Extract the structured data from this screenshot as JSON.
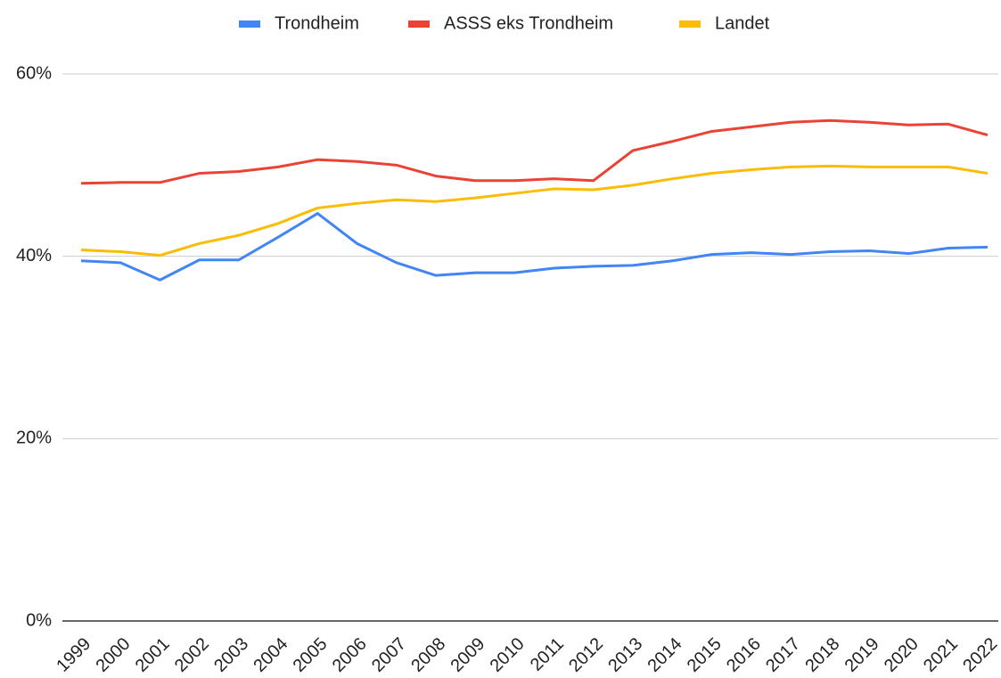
{
  "chart_data": {
    "type": "line",
    "categories": [
      "1999",
      "2000",
      "2001",
      "2002",
      "2003",
      "2004",
      "2005",
      "2006",
      "2007",
      "2008",
      "2009",
      "2010",
      "2011",
      "2012",
      "2013",
      "2014",
      "2015",
      "2016",
      "2017",
      "2018",
      "2019",
      "2020",
      "2021",
      "2022"
    ],
    "series": [
      {
        "name": "Trondheim",
        "color": "#4285f4",
        "values": [
          39.5,
          39.3,
          37.4,
          39.6,
          39.6,
          42.1,
          44.7,
          41.4,
          39.3,
          37.9,
          38.2,
          38.2,
          38.7,
          38.9,
          39.0,
          39.5,
          40.2,
          40.4,
          40.2,
          40.5,
          40.6,
          40.3,
          40.9,
          41.0
        ]
      },
      {
        "name": "ASSS eks Trondheim",
        "color": "#ea4335",
        "values": [
          48.0,
          48.1,
          48.1,
          49.1,
          49.3,
          49.8,
          50.6,
          50.4,
          50.0,
          48.8,
          48.3,
          48.3,
          48.5,
          48.3,
          51.6,
          52.6,
          53.7,
          54.2,
          54.7,
          54.9,
          54.7,
          54.4,
          54.5,
          53.3
        ]
      },
      {
        "name": "Landet",
        "color": "#fbbc04",
        "values": [
          40.7,
          40.5,
          40.1,
          41.4,
          42.3,
          43.6,
          45.3,
          45.8,
          46.2,
          46.0,
          46.4,
          46.9,
          47.4,
          47.3,
          47.8,
          48.5,
          49.1,
          49.5,
          49.8,
          49.9,
          49.8,
          49.8,
          49.8,
          49.1
        ]
      }
    ],
    "ylim": [
      0,
      60
    ],
    "yticks": [
      {
        "value": 0,
        "label": "0%"
      },
      {
        "value": 20,
        "label": "20%"
      },
      {
        "value": 40,
        "label": "40%"
      },
      {
        "value": 60,
        "label": "60%"
      }
    ],
    "grid": true,
    "legend": "top"
  }
}
